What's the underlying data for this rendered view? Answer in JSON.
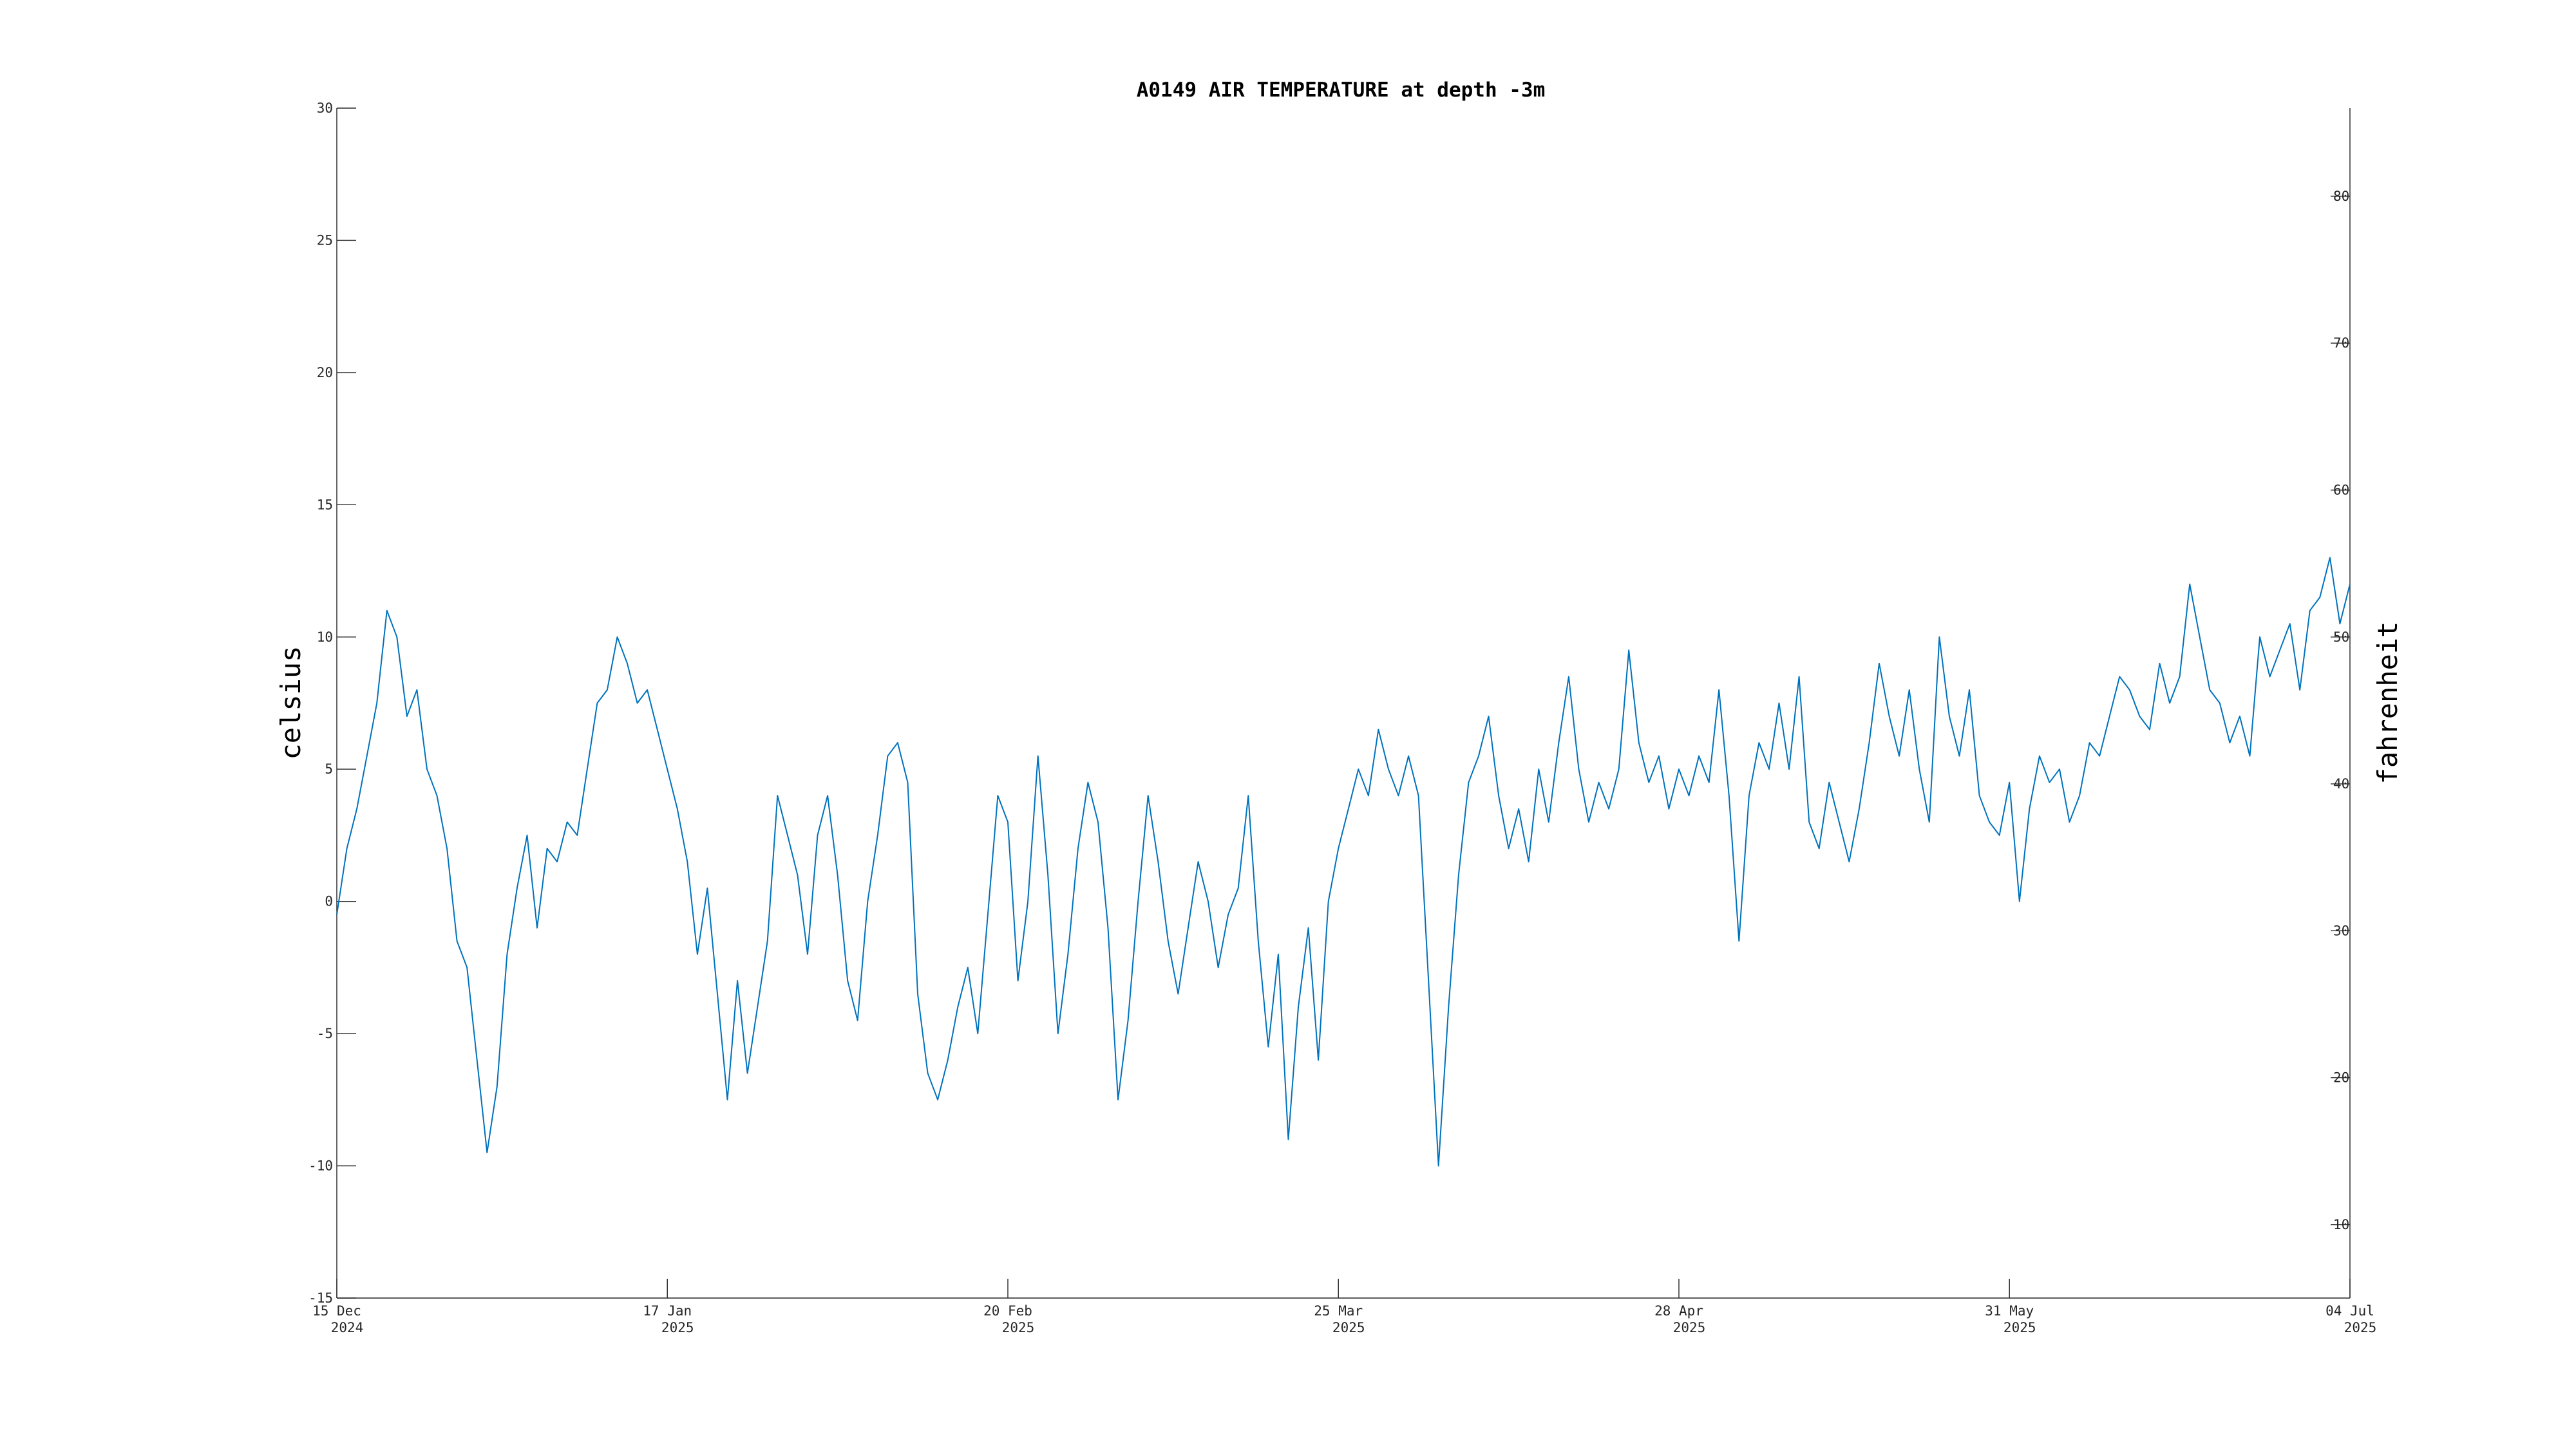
{
  "chart_data": {
    "type": "line",
    "title": "A0149 AIR TEMPERATURE at depth -3m",
    "ylabel": "celsius",
    "ylabel_right": "fahrenheit",
    "ylim": [
      -15,
      30
    ],
    "ylim_right": [
      5,
      86
    ],
    "xlim": [
      "2024-12-15",
      "2025-07-04"
    ],
    "y_ticks": [
      -15,
      -10,
      -5,
      0,
      5,
      10,
      15,
      20,
      25,
      30
    ],
    "y_ticks_right": [
      10,
      20,
      30,
      40,
      50,
      60,
      70,
      80
    ],
    "x_ticks": [
      {
        "date": "2024-12-15",
        "label": "15 Dec",
        "year": "2024"
      },
      {
        "date": "2025-01-17",
        "label": "17 Jan",
        "year": "2025"
      },
      {
        "date": "2025-02-20",
        "label": "20 Feb",
        "year": "2025"
      },
      {
        "date": "2025-03-25",
        "label": "25 Mar",
        "year": "2025"
      },
      {
        "date": "2025-04-28",
        "label": "28 Apr",
        "year": "2025"
      },
      {
        "date": "2025-05-31",
        "label": "31 May",
        "year": "2025"
      },
      {
        "date": "2025-07-04",
        "label": "04 Jul",
        "year": "2025"
      }
    ],
    "grid": false,
    "series": [
      {
        "color": "#0072BD",
        "points": [
          [
            "2024-12-15",
            -0.5
          ],
          [
            "2024-12-16",
            2.0
          ],
          [
            "2024-12-17",
            3.5
          ],
          [
            "2024-12-18",
            5.5
          ],
          [
            "2024-12-19",
            7.5
          ],
          [
            "2024-12-20",
            11.0
          ],
          [
            "2024-12-21",
            10.0
          ],
          [
            "2024-12-22",
            7.0
          ],
          [
            "2024-12-23",
            8.0
          ],
          [
            "2024-12-24",
            5.0
          ],
          [
            "2024-12-25",
            4.0
          ],
          [
            "2024-12-26",
            2.0
          ],
          [
            "2024-12-27",
            -1.5
          ],
          [
            "2024-12-28",
            -2.5
          ],
          [
            "2024-12-29",
            -6.0
          ],
          [
            "2024-12-30",
            -9.5
          ],
          [
            "2024-12-31",
            -7.0
          ],
          [
            "2025-01-01",
            -2.0
          ],
          [
            "2025-01-02",
            0.5
          ],
          [
            "2025-01-03",
            2.5
          ],
          [
            "2025-01-04",
            -1.0
          ],
          [
            "2025-01-05",
            2.0
          ],
          [
            "2025-01-06",
            1.5
          ],
          [
            "2025-01-07",
            3.0
          ],
          [
            "2025-01-08",
            2.5
          ],
          [
            "2025-01-09",
            5.0
          ],
          [
            "2025-01-10",
            7.5
          ],
          [
            "2025-01-11",
            8.0
          ],
          [
            "2025-01-12",
            10.0
          ],
          [
            "2025-01-13",
            9.0
          ],
          [
            "2025-01-14",
            7.5
          ],
          [
            "2025-01-15",
            8.0
          ],
          [
            "2025-01-16",
            6.5
          ],
          [
            "2025-01-17",
            5.0
          ],
          [
            "2025-01-18",
            3.5
          ],
          [
            "2025-01-19",
            1.5
          ],
          [
            "2025-01-20",
            -2.0
          ],
          [
            "2025-01-21",
            0.5
          ],
          [
            "2025-01-22",
            -3.5
          ],
          [
            "2025-01-23",
            -7.5
          ],
          [
            "2025-01-24",
            -3.0
          ],
          [
            "2025-01-25",
            -6.5
          ],
          [
            "2025-01-26",
            -4.0
          ],
          [
            "2025-01-27",
            -1.5
          ],
          [
            "2025-01-28",
            4.0
          ],
          [
            "2025-01-29",
            2.5
          ],
          [
            "2025-01-30",
            1.0
          ],
          [
            "2025-01-31",
            -2.0
          ],
          [
            "2025-02-01",
            2.5
          ],
          [
            "2025-02-02",
            4.0
          ],
          [
            "2025-02-03",
            1.0
          ],
          [
            "2025-02-04",
            -3.0
          ],
          [
            "2025-02-05",
            -4.5
          ],
          [
            "2025-02-06",
            0.0
          ],
          [
            "2025-02-07",
            2.5
          ],
          [
            "2025-02-08",
            5.5
          ],
          [
            "2025-02-09",
            6.0
          ],
          [
            "2025-02-10",
            4.5
          ],
          [
            "2025-02-11",
            -3.5
          ],
          [
            "2025-02-12",
            -6.5
          ],
          [
            "2025-02-13",
            -7.5
          ],
          [
            "2025-02-14",
            -6.0
          ],
          [
            "2025-02-15",
            -4.0
          ],
          [
            "2025-02-16",
            -2.5
          ],
          [
            "2025-02-17",
            -5.0
          ],
          [
            "2025-02-18",
            -0.5
          ],
          [
            "2025-02-19",
            4.0
          ],
          [
            "2025-02-20",
            3.0
          ],
          [
            "2025-02-21",
            -3.0
          ],
          [
            "2025-02-22",
            0.0
          ],
          [
            "2025-02-23",
            5.5
          ],
          [
            "2025-02-24",
            1.0
          ],
          [
            "2025-02-25",
            -5.0
          ],
          [
            "2025-02-26",
            -2.0
          ],
          [
            "2025-02-27",
            2.0
          ],
          [
            "2025-02-28",
            4.5
          ],
          [
            "2025-03-01",
            3.0
          ],
          [
            "2025-03-02",
            -1.0
          ],
          [
            "2025-03-03",
            -7.5
          ],
          [
            "2025-03-04",
            -4.5
          ],
          [
            "2025-03-05",
            0.0
          ],
          [
            "2025-03-06",
            4.0
          ],
          [
            "2025-03-07",
            1.5
          ],
          [
            "2025-03-08",
            -1.5
          ],
          [
            "2025-03-09",
            -3.5
          ],
          [
            "2025-03-10",
            -1.0
          ],
          [
            "2025-03-11",
            1.5
          ],
          [
            "2025-03-12",
            0.0
          ],
          [
            "2025-03-13",
            -2.5
          ],
          [
            "2025-03-14",
            -0.5
          ],
          [
            "2025-03-15",
            0.5
          ],
          [
            "2025-03-16",
            4.0
          ],
          [
            "2025-03-17",
            -1.5
          ],
          [
            "2025-03-18",
            -5.5
          ],
          [
            "2025-03-19",
            -2.0
          ],
          [
            "2025-03-20",
            -9.0
          ],
          [
            "2025-03-21",
            -4.0
          ],
          [
            "2025-03-22",
            -1.0
          ],
          [
            "2025-03-23",
            -6.0
          ],
          [
            "2025-03-24",
            0.0
          ],
          [
            "2025-03-25",
            2.0
          ],
          [
            "2025-03-26",
            3.5
          ],
          [
            "2025-03-27",
            5.0
          ],
          [
            "2025-03-28",
            4.0
          ],
          [
            "2025-03-29",
            6.5
          ],
          [
            "2025-03-30",
            5.0
          ],
          [
            "2025-03-31",
            4.0
          ],
          [
            "2025-04-01",
            5.5
          ],
          [
            "2025-04-02",
            4.0
          ],
          [
            "2025-04-03",
            -3.0
          ],
          [
            "2025-04-04",
            -10.0
          ],
          [
            "2025-04-05",
            -4.0
          ],
          [
            "2025-04-06",
            1.0
          ],
          [
            "2025-04-07",
            4.5
          ],
          [
            "2025-04-08",
            5.5
          ],
          [
            "2025-04-09",
            7.0
          ],
          [
            "2025-04-10",
            4.0
          ],
          [
            "2025-04-11",
            2.0
          ],
          [
            "2025-04-12",
            3.5
          ],
          [
            "2025-04-13",
            1.5
          ],
          [
            "2025-04-14",
            5.0
          ],
          [
            "2025-04-15",
            3.0
          ],
          [
            "2025-04-16",
            6.0
          ],
          [
            "2025-04-17",
            8.5
          ],
          [
            "2025-04-18",
            5.0
          ],
          [
            "2025-04-19",
            3.0
          ],
          [
            "2025-04-20",
            4.5
          ],
          [
            "2025-04-21",
            3.5
          ],
          [
            "2025-04-22",
            5.0
          ],
          [
            "2025-04-23",
            9.5
          ],
          [
            "2025-04-24",
            6.0
          ],
          [
            "2025-04-25",
            4.5
          ],
          [
            "2025-04-26",
            5.5
          ],
          [
            "2025-04-27",
            3.5
          ],
          [
            "2025-04-28",
            5.0
          ],
          [
            "2025-04-29",
            4.0
          ],
          [
            "2025-04-30",
            5.5
          ],
          [
            "2025-05-01",
            4.5
          ],
          [
            "2025-05-02",
            8.0
          ],
          [
            "2025-05-03",
            4.0
          ],
          [
            "2025-05-04",
            -1.5
          ],
          [
            "2025-05-05",
            4.0
          ],
          [
            "2025-05-06",
            6.0
          ],
          [
            "2025-05-07",
            5.0
          ],
          [
            "2025-05-08",
            7.5
          ],
          [
            "2025-05-09",
            5.0
          ],
          [
            "2025-05-10",
            8.5
          ],
          [
            "2025-05-11",
            3.0
          ],
          [
            "2025-05-12",
            2.0
          ],
          [
            "2025-05-13",
            4.5
          ],
          [
            "2025-05-14",
            3.0
          ],
          [
            "2025-05-15",
            1.5
          ],
          [
            "2025-05-16",
            3.5
          ],
          [
            "2025-05-17",
            6.0
          ],
          [
            "2025-05-18",
            9.0
          ],
          [
            "2025-05-19",
            7.0
          ],
          [
            "2025-05-20",
            5.5
          ],
          [
            "2025-05-21",
            8.0
          ],
          [
            "2025-05-22",
            5.0
          ],
          [
            "2025-05-23",
            3.0
          ],
          [
            "2025-05-24",
            10.0
          ],
          [
            "2025-05-25",
            7.0
          ],
          [
            "2025-05-26",
            5.5
          ],
          [
            "2025-05-27",
            8.0
          ],
          [
            "2025-05-28",
            4.0
          ],
          [
            "2025-05-29",
            3.0
          ],
          [
            "2025-05-30",
            2.5
          ],
          [
            "2025-05-31",
            4.5
          ],
          [
            "2025-06-01",
            0.0
          ],
          [
            "2025-06-02",
            3.5
          ],
          [
            "2025-06-03",
            5.5
          ],
          [
            "2025-06-04",
            4.5
          ],
          [
            "2025-06-05",
            5.0
          ],
          [
            "2025-06-06",
            3.0
          ],
          [
            "2025-06-07",
            4.0
          ],
          [
            "2025-06-08",
            6.0
          ],
          [
            "2025-06-09",
            5.5
          ],
          [
            "2025-06-10",
            7.0
          ],
          [
            "2025-06-11",
            8.5
          ],
          [
            "2025-06-12",
            8.0
          ],
          [
            "2025-06-13",
            7.0
          ],
          [
            "2025-06-14",
            6.5
          ],
          [
            "2025-06-15",
            9.0
          ],
          [
            "2025-06-16",
            7.5
          ],
          [
            "2025-06-17",
            8.5
          ],
          [
            "2025-06-18",
            12.0
          ],
          [
            "2025-06-19",
            10.0
          ],
          [
            "2025-06-20",
            8.0
          ],
          [
            "2025-06-21",
            7.5
          ],
          [
            "2025-06-22",
            6.0
          ],
          [
            "2025-06-23",
            7.0
          ],
          [
            "2025-06-24",
            5.5
          ],
          [
            "2025-06-25",
            10.0
          ],
          [
            "2025-06-26",
            8.5
          ],
          [
            "2025-06-27",
            9.5
          ],
          [
            "2025-06-28",
            10.5
          ],
          [
            "2025-06-29",
            8.0
          ],
          [
            "2025-06-30",
            11.0
          ],
          [
            "2025-07-01",
            11.5
          ],
          [
            "2025-07-02",
            13.0
          ],
          [
            "2025-07-03",
            10.5
          ],
          [
            "2025-07-04",
            12.0
          ]
        ]
      }
    ]
  }
}
